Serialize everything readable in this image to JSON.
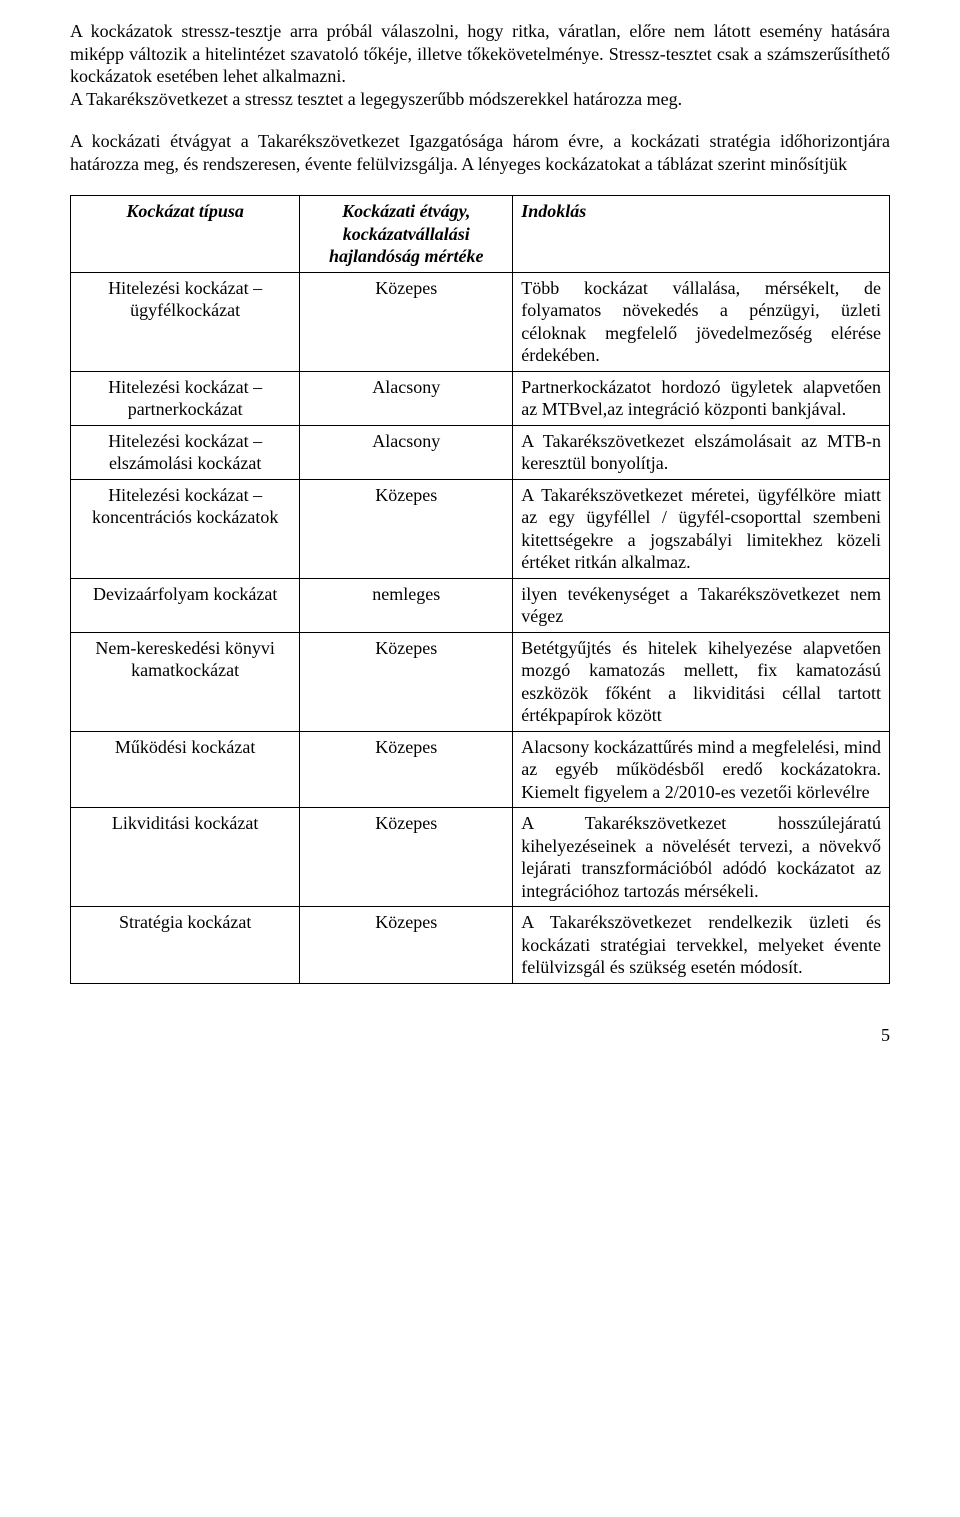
{
  "paragraphs": {
    "p1": "A kockázatok stressz-tesztje arra próbál válaszolni, hogy ritka, váratlan, előre nem látott esemény hatására miképp változik a hitelintézet szavatoló tőkéje, illetve tőkekövetelménye. Stressz-tesztet csak a számszerűsíthető kockázatok esetében lehet alkalmazni.",
    "p1b": "A Takarékszövetkezet a stressz tesztet a legegyszerűbb módszerekkel határozza meg.",
    "p2": "A kockázati étvágyat a Takarékszövetkezet Igazgatósága három évre, a kockázati stratégia időhorizontjára határozza meg, és rendszeresen, évente felülvizsgálja. A lényeges kockázatokat a táblázat szerint minősítjük"
  },
  "header": {
    "c1": "Kockázat típusa",
    "c2": "Kockázati étvágy, kockázatvállalási hajlandóság mértéke",
    "c3": "Indoklás"
  },
  "rows": [
    {
      "t": "Hitelezési kockázat – ügyfélkockázat",
      "l": "Közepes",
      "d": "Több kockázat vállalása, mérsékelt, de folyamatos növekedés a pénzügyi, üzleti céloknak megfelelő jövedelmezőség elérése érdekében."
    },
    {
      "t": "Hitelezési kockázat – partnerkockázat",
      "l": "Alacsony",
      "d": "Partnerkockázatot hordozó ügyletek alapvetően az MTBvel,az integráció központi bankjával."
    },
    {
      "t": "Hitelezési kockázat – elszámolási kockázat",
      "l": "Alacsony",
      "d": "A Takarékszövetkezet elszámolásait az MTB-n keresztül bonyolítja."
    },
    {
      "t": "Hitelezési kockázat – koncentrációs kockázatok",
      "l": "Közepes",
      "d": "A Takarékszövetkezet méretei, ügyfélköre miatt az egy ügyféllel / ügyfél-csoporttal szembeni kitettségekre a jogszabályi limitekhez közeli értéket ritkán alkalmaz."
    },
    {
      "t": "Devizaárfolyam kockázat",
      "l": "nemleges",
      "d": "ilyen tevékenységet a Takarékszövetkezet nem végez"
    },
    {
      "t": "Nem-kereskedési könyvi kamatkockázat",
      "l": "Közepes",
      "d": "Betétgyűjtés és hitelek kihelyezése alapvetően mozgó kamatozás mellett, fix kamatozású eszközök főként a likviditási céllal tartott értékpapírok között"
    },
    {
      "t": "Működési kockázat",
      "l": "Közepes",
      "d": "Alacsony kockázattűrés mind a megfelelési, mind az egyéb működésből eredő kockázatokra. Kiemelt figyelem a 2/2010-es vezetői körlevélre"
    },
    {
      "t": "Likviditási kockázat",
      "l": "Közepes",
      "d": "A Takarékszövetkezet hosszúlejáratú kihelyezéseinek a növelését tervezi, a növekvő lejárati transzformációból adódó kockázatot az integrációhoz tartozás mérsékeli."
    },
    {
      "t": "Stratégia kockázat",
      "l": "Közepes",
      "d": "A Takarékszövetkezet rendelkezik üzleti és kockázati stratégiai tervekkel, melyeket évente felülvizsgál és szükség esetén módosít."
    }
  ],
  "pageNumber": "5"
}
